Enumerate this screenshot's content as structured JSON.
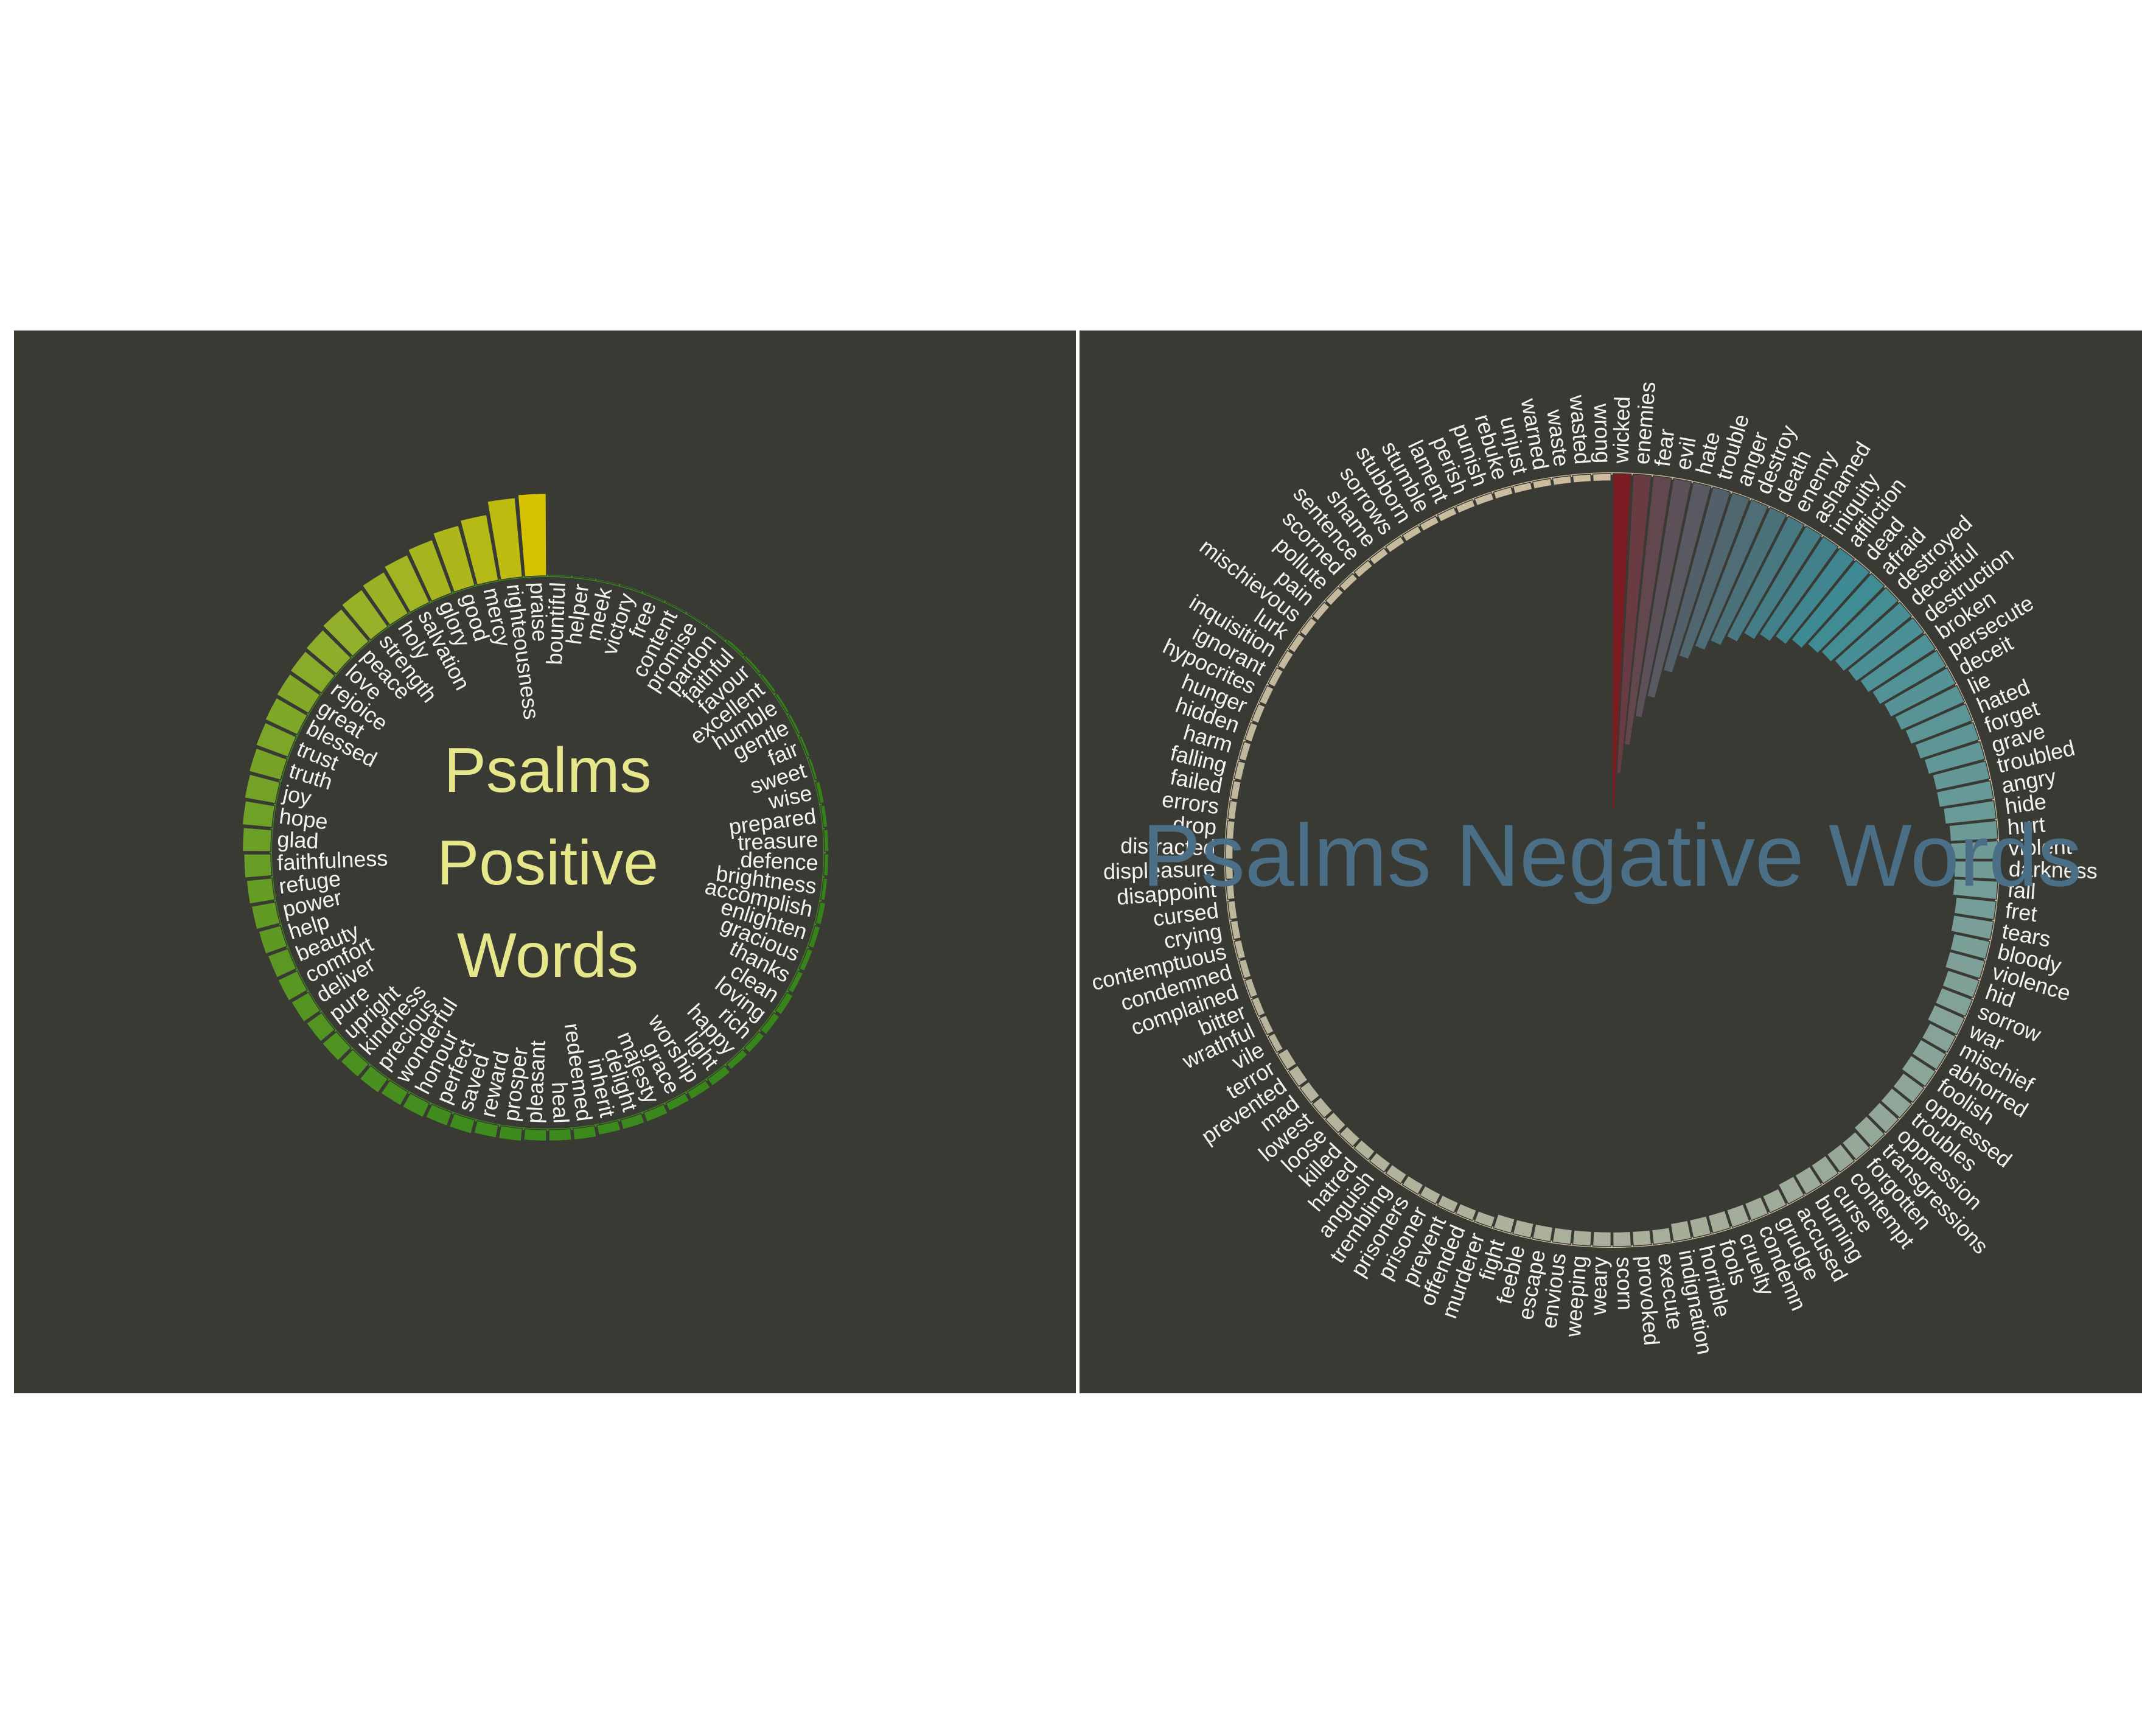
{
  "chart_data": [
    {
      "type": "radial_bar",
      "direction": "outward",
      "clockwise": false,
      "title": "Psalms Positive Words",
      "categories": [
        "praise",
        "righteousness",
        "mercy",
        "good",
        "glory",
        "salvation",
        "holy",
        "strength",
        "peace",
        "love",
        "rejoice",
        "great",
        "blessed",
        "trust",
        "truth",
        "joy",
        "hope",
        "glad",
        "faithfulness",
        "refuge",
        "power",
        "help",
        "beauty",
        "comfort",
        "deliver",
        "pure",
        "upright",
        "kindness",
        "precious",
        "wonderful",
        "honour",
        "perfect",
        "saved",
        "reward",
        "prosper",
        "pleasant",
        "heal",
        "redeemed",
        "inherit",
        "delight",
        "majesty",
        "grace",
        "worship",
        "light",
        "happy",
        "rich",
        "loving",
        "clean",
        "thanks",
        "gracious",
        "enlighten",
        "accomplish",
        "brightness",
        "defence",
        "treasure",
        "prepared",
        "wise",
        "sweet",
        "fair",
        "gentle",
        "humble",
        "excellent",
        "favour",
        "faithful",
        "pardon",
        "promise",
        "content",
        "free",
        "victory",
        "meek",
        "helper",
        "bountiful"
      ],
      "values": [
        58,
        56,
        47,
        44,
        40,
        37,
        34,
        32,
        30,
        28,
        27,
        26,
        25,
        24,
        23,
        22,
        21,
        20,
        19,
        18,
        17,
        16,
        15,
        15,
        14,
        13,
        13,
        12,
        12,
        11,
        11,
        10,
        10,
        9,
        9,
        8,
        8,
        8,
        7,
        7,
        7,
        6,
        6,
        6,
        5,
        5,
        5,
        5,
        4,
        4,
        4,
        4,
        3,
        3,
        3,
        3,
        3,
        2,
        2,
        2,
        2,
        2,
        2,
        2,
        1,
        1,
        1,
        1,
        1,
        1,
        1,
        1
      ],
      "ylim": [
        0,
        60
      ],
      "colors": [
        "#d6c200",
        "#93b02c",
        "#3f8c1e",
        "#2d7c14"
      ],
      "outline_color": "#3f8c1e"
    },
    {
      "type": "radial_bar",
      "direction": "inward",
      "clockwise": true,
      "title": "Psalms Negative Words",
      "categories": [
        "wicked",
        "enemies",
        "fear",
        "evil",
        "hate",
        "trouble",
        "anger",
        "destroy",
        "death",
        "enemy",
        "ashamed",
        "iniquity",
        "affliction",
        "dead",
        "afraid",
        "destroyed",
        "deceitful",
        "destruction",
        "broken",
        "persecute",
        "deceit",
        "lie",
        "hated",
        "forget",
        "grave",
        "troubled",
        "angry",
        "hide",
        "hurt",
        "violent",
        "darkness",
        "fall",
        "fret",
        "tears",
        "bloody",
        "violence",
        "hid",
        "sorrow",
        "war",
        "mischief",
        "abhorred",
        "foolish",
        "oppressed",
        "troubles",
        "oppression",
        "transgressions",
        "forgotten",
        "contempt",
        "curse",
        "burning",
        "accused",
        "grudge",
        "condemn",
        "cruelty",
        "fools",
        "horrible",
        "indignation",
        "execute",
        "provoked",
        "scorn",
        "weary",
        "weeping",
        "envious",
        "escape",
        "feeble",
        "fight",
        "murderer",
        "offended",
        "prevent",
        "prisoner",
        "prisoners",
        "trembling",
        "anguish",
        "hatred",
        "killed",
        "loose",
        "lowest",
        "mad",
        "prevented",
        "terror",
        "vile",
        "wrathful",
        "bitter",
        "complained",
        "condemned",
        "contemptuous",
        "crying",
        "cursed",
        "disappoint",
        "displeasure",
        "distracted",
        "drop",
        "errors",
        "failed",
        "falling",
        "harm",
        "hidden",
        "hunger",
        "hypocrites",
        "ignorant",
        "inquisition",
        "lurk",
        "mischievous",
        "pain",
        "pollute",
        "scorned",
        "sentence",
        "shame",
        "sorrows",
        "stubborn",
        "stumble",
        "lament",
        "perish",
        "punish",
        "rebuke",
        "unjust",
        "warned",
        "waste",
        "wasted",
        "wrong"
      ],
      "values": [
        92,
        82,
        74,
        66,
        60,
        52,
        47,
        43,
        40,
        37,
        34,
        32,
        30,
        28,
        26,
        25,
        24,
        23,
        22,
        21,
        20,
        19,
        18,
        17,
        16,
        15,
        15,
        14,
        13,
        13,
        12,
        12,
        11,
        11,
        10,
        10,
        9,
        9,
        9,
        8,
        8,
        8,
        7,
        7,
        7,
        7,
        6,
        6,
        6,
        6,
        6,
        5,
        5,
        5,
        5,
        5,
        5,
        4,
        4,
        4,
        4,
        4,
        4,
        4,
        4,
        4,
        3,
        3,
        3,
        3,
        3,
        3,
        3,
        3,
        3,
        3,
        3,
        3,
        3,
        3,
        2,
        2,
        2,
        2,
        2,
        2,
        2,
        2,
        2,
        2,
        2,
        2,
        2,
        2,
        2,
        2,
        2,
        2,
        2,
        2,
        2,
        2,
        2,
        2,
        2,
        2,
        2,
        2,
        2,
        2,
        2,
        2,
        2,
        2,
        2,
        2,
        2,
        2,
        2,
        2
      ],
      "ylim": [
        0,
        100
      ],
      "colors": [
        "#7a1c22",
        "#3d8b95",
        "#a4ad9a",
        "#cdbd9e"
      ],
      "outline_color": "#cdbd9e"
    }
  ]
}
